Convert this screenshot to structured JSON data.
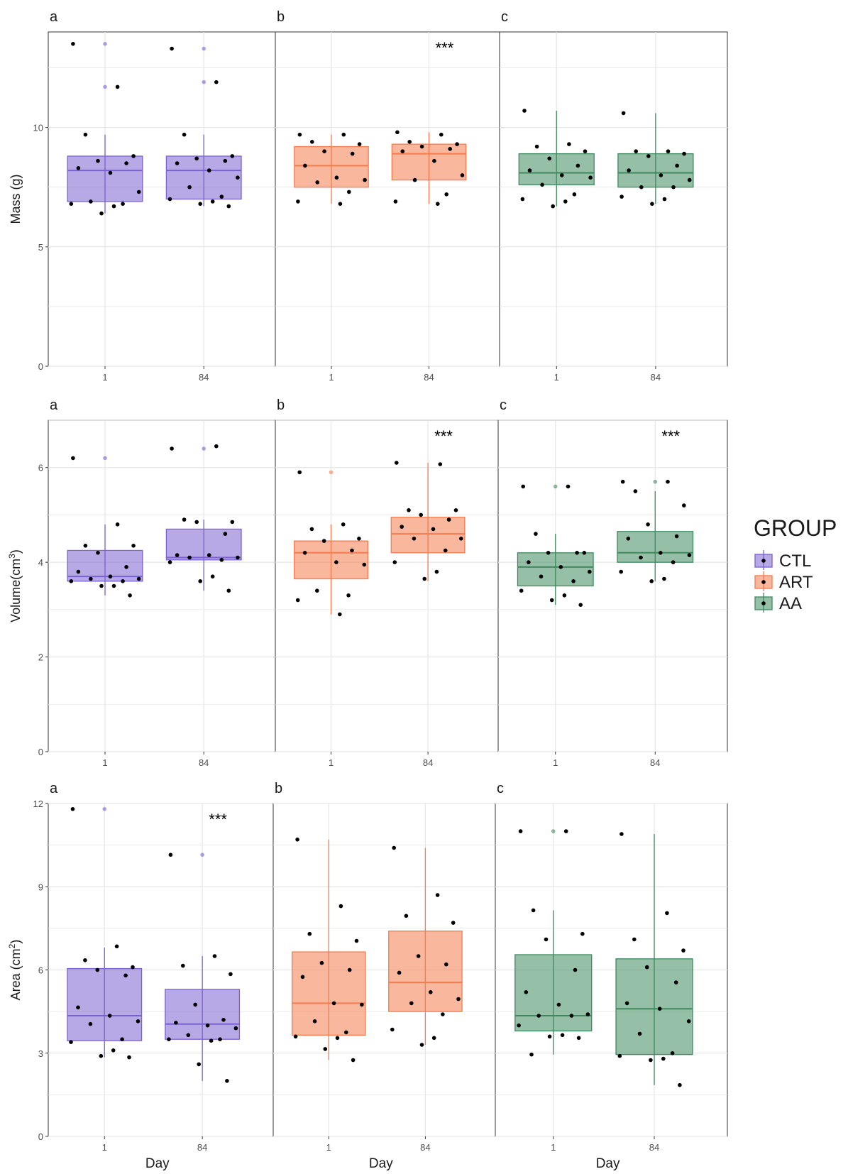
{
  "colors": {
    "CTL": "#7B61D1",
    "ART": "#F47C4E",
    "AA": "#3E8A5E"
  },
  "legend": {
    "title": "GROUP",
    "items": [
      "CTL",
      "ART",
      "AA"
    ]
  },
  "xlabel": "Day",
  "significance_marker": "***",
  "chart_data": [
    {
      "type": "box",
      "ylabel": "Mass (g)",
      "ylim": [
        0,
        14
      ],
      "yticks": [
        0,
        5,
        10
      ],
      "categories": [
        "1",
        "84"
      ],
      "panels": [
        {
          "label": "a",
          "group": "CTL",
          "significant_day": null,
          "boxes": [
            {
              "day": "1",
              "q1": 6.9,
              "median": 8.2,
              "q3": 8.8,
              "whisker_low": 6.4,
              "whisker_high": 9.7,
              "outliers": [
                11.7,
                13.5
              ],
              "points": [
                13.5,
                11.7,
                9.7,
                8.8,
                8.6,
                8.5,
                8.3,
                8.1,
                7.3,
                6.9,
                6.8,
                6.8,
                6.7,
                6.4
              ]
            },
            {
              "day": "84",
              "q1": 7.0,
              "median": 8.2,
              "q3": 8.8,
              "whisker_low": 6.7,
              "whisker_high": 9.7,
              "outliers": [
                11.9,
                13.3
              ],
              "points": [
                13.3,
                11.9,
                9.7,
                8.8,
                8.7,
                8.6,
                8.5,
                8.2,
                7.9,
                7.5,
                7.1,
                7.0,
                6.9,
                6.8,
                6.7
              ]
            }
          ]
        },
        {
          "label": "b",
          "group": "ART",
          "significant_day": "84",
          "boxes": [
            {
              "day": "1",
              "q1": 7.5,
              "median": 8.4,
              "q3": 9.2,
              "whisker_low": 6.8,
              "whisker_high": 9.7,
              "outliers": [],
              "points": [
                9.7,
                9.7,
                9.4,
                9.3,
                9.0,
                8.9,
                8.4,
                7.9,
                7.8,
                7.7,
                7.3,
                6.9,
                6.8
              ]
            },
            {
              "day": "84",
              "q1": 7.8,
              "median": 8.9,
              "q3": 9.3,
              "whisker_low": 6.8,
              "whisker_high": 9.8,
              "outliers": [],
              "points": [
                9.8,
                9.7,
                9.4,
                9.3,
                9.2,
                9.1,
                9.0,
                8.6,
                8.0,
                7.8,
                7.2,
                6.9,
                6.8
              ]
            }
          ]
        },
        {
          "label": "c",
          "group": "AA",
          "significant_day": null,
          "boxes": [
            {
              "day": "1",
              "q1": 7.6,
              "median": 8.1,
              "q3": 8.9,
              "whisker_low": 6.7,
              "whisker_high": 10.7,
              "outliers": [],
              "points": [
                10.7,
                9.3,
                9.2,
                9.0,
                8.7,
                8.4,
                8.2,
                8.0,
                7.9,
                7.6,
                7.2,
                7.0,
                6.9,
                6.7
              ]
            },
            {
              "day": "84",
              "q1": 7.5,
              "median": 8.1,
              "q3": 8.9,
              "whisker_low": 6.8,
              "whisker_high": 10.6,
              "outliers": [],
              "points": [
                10.6,
                9.0,
                9.0,
                8.9,
                8.8,
                8.4,
                8.2,
                8.0,
                7.8,
                7.5,
                7.5,
                7.1,
                7.0,
                6.8
              ]
            }
          ]
        }
      ]
    },
    {
      "type": "box",
      "ylabel": "Volume(cm",
      "ylabel_sup": "3",
      "ylabel_tail": ")",
      "ylim": [
        0,
        7
      ],
      "yticks": [
        0,
        2,
        4,
        6
      ],
      "categories": [
        "1",
        "84"
      ],
      "panels": [
        {
          "label": "a",
          "group": "CTL",
          "significant_day": null,
          "boxes": [
            {
              "day": "1",
              "q1": 3.6,
              "median": 3.7,
              "q3": 4.25,
              "whisker_low": 3.3,
              "whisker_high": 4.8,
              "outliers": [
                6.2
              ],
              "points": [
                6.2,
                4.8,
                4.35,
                4.35,
                4.2,
                3.9,
                3.8,
                3.7,
                3.65,
                3.65,
                3.6,
                3.6,
                3.5,
                3.5,
                3.3
              ]
            },
            {
              "day": "84",
              "q1": 4.05,
              "median": 4.1,
              "q3": 4.7,
              "whisker_low": 3.4,
              "whisker_high": 4.9,
              "outliers": [
                6.4
              ],
              "points": [
                6.4,
                6.45,
                4.9,
                4.85,
                4.85,
                4.6,
                4.15,
                4.15,
                4.1,
                4.1,
                4.05,
                4.0,
                3.7,
                3.6,
                3.4
              ]
            }
          ]
        },
        {
          "label": "b",
          "group": "ART",
          "significant_day": "84",
          "boxes": [
            {
              "day": "1",
              "q1": 3.65,
              "median": 4.2,
              "q3": 4.45,
              "whisker_low": 2.9,
              "whisker_high": 4.8,
              "outliers": [
                5.9
              ],
              "points": [
                5.9,
                4.8,
                4.7,
                4.5,
                4.45,
                4.25,
                4.2,
                4.0,
                3.95,
                3.4,
                3.3,
                3.2,
                2.9
              ]
            },
            {
              "day": "84",
              "q1": 4.2,
              "median": 4.6,
              "q3": 4.95,
              "whisker_low": 3.6,
              "whisker_high": 6.1,
              "outliers": [],
              "points": [
                6.1,
                6.07,
                5.1,
                5.1,
                5.0,
                4.9,
                4.75,
                4.7,
                4.5,
                4.5,
                4.25,
                4.0,
                3.8,
                3.65
              ]
            }
          ]
        },
        {
          "label": "c",
          "group": "AA",
          "significant_day": "84",
          "boxes": [
            {
              "day": "1",
              "q1": 3.5,
              "median": 3.9,
              "q3": 4.2,
              "whisker_low": 3.1,
              "whisker_high": 4.6,
              "outliers": [
                5.6
              ],
              "points": [
                5.6,
                5.6,
                4.6,
                4.2,
                4.2,
                4.2,
                4.0,
                3.9,
                3.8,
                3.7,
                3.6,
                3.4,
                3.3,
                3.2,
                3.1
              ]
            },
            {
              "day": "84",
              "q1": 4.0,
              "median": 4.2,
              "q3": 4.65,
              "whisker_low": 3.6,
              "whisker_high": 5.5,
              "outliers": [
                5.7
              ],
              "points": [
                5.7,
                5.7,
                5.5,
                5.2,
                4.8,
                4.55,
                4.5,
                4.2,
                4.15,
                4.1,
                4.0,
                3.8,
                3.65,
                3.6
              ]
            }
          ]
        }
      ]
    },
    {
      "type": "box",
      "ylabel": "Area (cm",
      "ylabel_sup": "2",
      "ylabel_tail": ")",
      "ylim": [
        0,
        12
      ],
      "yticks": [
        0,
        3,
        6,
        9,
        12
      ],
      "categories": [
        "1",
        "84"
      ],
      "panels": [
        {
          "label": "a",
          "group": "CTL",
          "significant_day": "84",
          "boxes": [
            {
              "day": "1",
              "q1": 3.45,
              "median": 4.35,
              "q3": 6.05,
              "whisker_low": 2.85,
              "whisker_high": 6.8,
              "outliers": [
                11.8
              ],
              "points": [
                11.8,
                6.85,
                6.35,
                6.1,
                6.0,
                5.8,
                4.65,
                4.35,
                4.15,
                4.05,
                3.5,
                3.4,
                3.1,
                2.9,
                2.85
              ]
            },
            {
              "day": "84",
              "q1": 3.5,
              "median": 4.05,
              "q3": 5.3,
              "whisker_low": 2.0,
              "whisker_high": 6.5,
              "outliers": [
                10.15
              ],
              "points": [
                10.15,
                6.5,
                6.15,
                5.85,
                4.75,
                4.2,
                4.1,
                4.0,
                3.9,
                3.65,
                3.5,
                3.5,
                3.45,
                2.6,
                2.0
              ]
            }
          ]
        },
        {
          "label": "b",
          "group": "ART",
          "significant_day": null,
          "boxes": [
            {
              "day": "1",
              "q1": 3.65,
              "median": 4.8,
              "q3": 6.65,
              "whisker_low": 2.75,
              "whisker_high": 10.7,
              "outliers": [],
              "points": [
                10.7,
                8.3,
                7.3,
                7.05,
                6.25,
                6.0,
                5.75,
                4.8,
                4.75,
                4.15,
                3.75,
                3.6,
                3.55,
                3.15,
                2.75
              ]
            },
            {
              "day": "84",
              "q1": 4.5,
              "median": 5.55,
              "q3": 7.4,
              "whisker_low": 3.3,
              "whisker_high": 10.4,
              "outliers": [],
              "points": [
                10.4,
                8.7,
                7.95,
                7.7,
                6.5,
                6.2,
                5.9,
                5.2,
                4.95,
                4.8,
                4.4,
                3.85,
                3.55,
                3.3
              ]
            }
          ]
        },
        {
          "label": "c",
          "group": "AA",
          "significant_day": null,
          "boxes": [
            {
              "day": "1",
              "q1": 3.8,
              "median": 4.35,
              "q3": 6.55,
              "whisker_low": 2.95,
              "whisker_high": 8.15,
              "outliers": [
                11.0
              ],
              "points": [
                11.0,
                11.0,
                8.15,
                7.3,
                7.1,
                6.0,
                5.2,
                4.75,
                4.4,
                4.35,
                4.35,
                4.0,
                3.65,
                3.6,
                3.55,
                2.95
              ]
            },
            {
              "day": "84",
              "q1": 2.95,
              "median": 4.6,
              "q3": 6.4,
              "whisker_low": 1.85,
              "whisker_high": 10.9,
              "outliers": [],
              "points": [
                10.9,
                8.05,
                7.1,
                6.7,
                6.1,
                5.55,
                4.8,
                4.6,
                4.15,
                3.7,
                3.0,
                2.9,
                2.8,
                2.75,
                1.85
              ]
            }
          ]
        }
      ]
    }
  ]
}
